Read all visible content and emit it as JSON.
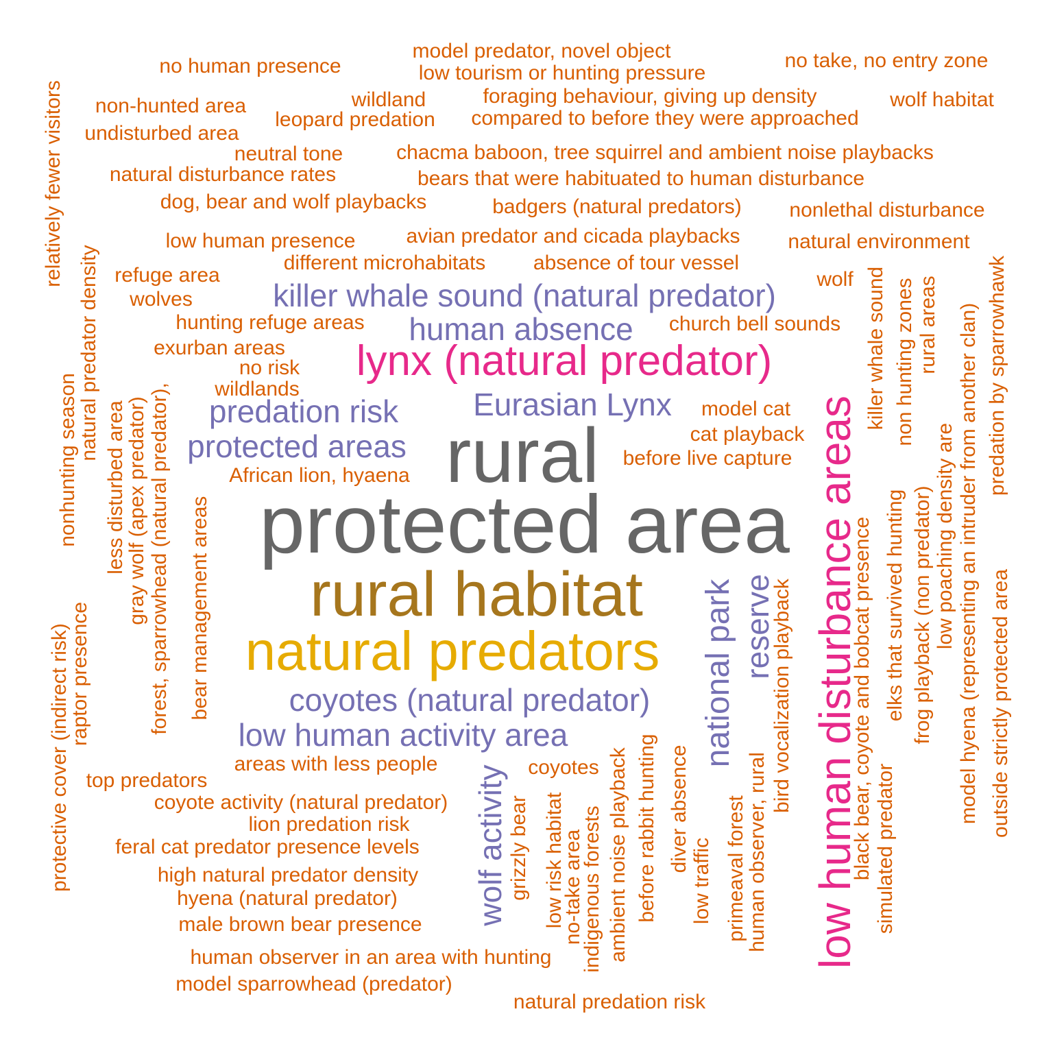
{
  "colors": {
    "orange": "#D95F02",
    "purple": "#7570B3",
    "magenta": "#E7298A",
    "gray": "#666666",
    "olive": "#A6761D",
    "gold": "#E6AB02"
  },
  "words": [
    {
      "text": "protected area",
      "color": "gray"
    },
    {
      "text": "rural",
      "color": "gray"
    },
    {
      "text": "rural habitat",
      "color": "olive"
    },
    {
      "text": "natural predators",
      "color": "gold"
    },
    {
      "text": "lynx (natural predator)",
      "color": "magenta"
    },
    {
      "text": "low human disturbance areas",
      "color": "magenta"
    },
    {
      "text": "killer whale sound (natural predator)",
      "color": "purple"
    },
    {
      "text": "human absence",
      "color": "purple"
    },
    {
      "text": "Eurasian Lynx",
      "color": "purple"
    },
    {
      "text": "predation risk",
      "color": "purple"
    },
    {
      "text": "protected areas",
      "color": "purple"
    },
    {
      "text": "coyotes (natural predator)",
      "color": "purple"
    },
    {
      "text": "low human activity area",
      "color": "purple"
    },
    {
      "text": "national park",
      "color": "purple"
    },
    {
      "text": "reserve",
      "color": "purple"
    },
    {
      "text": "wolf activity",
      "color": "purple"
    },
    {
      "text": "model predator, novel object",
      "color": "orange"
    },
    {
      "text": "low tourism or hunting pressure",
      "color": "orange"
    },
    {
      "text": "no human presence",
      "color": "orange"
    },
    {
      "text": "no take, no entry zone",
      "color": "orange"
    },
    {
      "text": "foraging behaviour, giving up density",
      "color": "orange"
    },
    {
      "text": "wildland",
      "color": "orange"
    },
    {
      "text": "wolf habitat",
      "color": "orange"
    },
    {
      "text": "non-hunted area",
      "color": "orange"
    },
    {
      "text": "leopard predation",
      "color": "orange"
    },
    {
      "text": "compared to before they were approached",
      "color": "orange"
    },
    {
      "text": "undisturbed area",
      "color": "orange"
    },
    {
      "text": "neutral tone",
      "color": "orange"
    },
    {
      "text": "chacma baboon, tree squirrel and ambient noise playbacks",
      "color": "orange"
    },
    {
      "text": "natural disturbance rates",
      "color": "orange"
    },
    {
      "text": "bears that were habituated to human disturbance",
      "color": "orange"
    },
    {
      "text": "dog, bear and wolf playbacks",
      "color": "orange"
    },
    {
      "text": "badgers (natural predators)",
      "color": "orange"
    },
    {
      "text": "nonlethal disturbance",
      "color": "orange"
    },
    {
      "text": "low human presence",
      "color": "orange"
    },
    {
      "text": "avian predator and cicada playbacks",
      "color": "orange"
    },
    {
      "text": "natural environment",
      "color": "orange"
    },
    {
      "text": "different microhabitats",
      "color": "orange"
    },
    {
      "text": "absence of tour vessel",
      "color": "orange"
    },
    {
      "text": "refuge area",
      "color": "orange"
    },
    {
      "text": "wolf",
      "color": "orange"
    },
    {
      "text": "wolves",
      "color": "orange"
    },
    {
      "text": "hunting refuge areas",
      "color": "orange"
    },
    {
      "text": "church bell sounds",
      "color": "orange"
    },
    {
      "text": "exurban areas",
      "color": "orange"
    },
    {
      "text": "no risk",
      "color": "orange"
    },
    {
      "text": "wildlands",
      "color": "orange"
    },
    {
      "text": "model cat",
      "color": "orange"
    },
    {
      "text": "cat playback",
      "color": "orange"
    },
    {
      "text": "before live capture",
      "color": "orange"
    },
    {
      "text": "African lion, hyaena",
      "color": "orange"
    },
    {
      "text": "areas with less people",
      "color": "orange"
    },
    {
      "text": "coyotes",
      "color": "orange"
    },
    {
      "text": "top predators",
      "color": "orange"
    },
    {
      "text": "coyote activity (natural predator)",
      "color": "orange"
    },
    {
      "text": "lion predation risk",
      "color": "orange"
    },
    {
      "text": "feral cat predator presence levels",
      "color": "orange"
    },
    {
      "text": "high natural predator density",
      "color": "orange"
    },
    {
      "text": "hyena (natural predator)",
      "color": "orange"
    },
    {
      "text": "male brown bear presence",
      "color": "orange"
    },
    {
      "text": "human observer in an area with hunting",
      "color": "orange"
    },
    {
      "text": "model sparrowhead (predator)",
      "color": "orange"
    },
    {
      "text": "natural predation risk",
      "color": "orange"
    },
    {
      "text": "relatively fewer visitors",
      "color": "orange"
    },
    {
      "text": "natural predator density",
      "color": "orange"
    },
    {
      "text": "nonhunting season",
      "color": "orange"
    },
    {
      "text": "less disturbed area",
      "color": "orange"
    },
    {
      "text": "gray wolf (apex predator)",
      "color": "orange"
    },
    {
      "text": "forest, sparrowhead (natural predator),",
      "color": "orange"
    },
    {
      "text": "bear management areas",
      "color": "orange"
    },
    {
      "text": "protective cover (indirect risk)",
      "color": "orange"
    },
    {
      "text": "raptor presence",
      "color": "orange"
    },
    {
      "text": "grizzly bear",
      "color": "orange"
    },
    {
      "text": "low risk habitat",
      "color": "orange"
    },
    {
      "text": "no-take area",
      "color": "orange"
    },
    {
      "text": "indigenous forests",
      "color": "orange"
    },
    {
      "text": "ambient noise playback",
      "color": "orange"
    },
    {
      "text": "before rabbit hunting",
      "color": "orange"
    },
    {
      "text": "diver absence",
      "color": "orange"
    },
    {
      "text": "low traffic",
      "color": "orange"
    },
    {
      "text": "primeaval forest",
      "color": "orange"
    },
    {
      "text": "human observer, rural",
      "color": "orange"
    },
    {
      "text": "bird vocalization playback",
      "color": "orange"
    },
    {
      "text": "black bear, coyote and bobcat presence",
      "color": "orange"
    },
    {
      "text": "simulated predator",
      "color": "orange"
    },
    {
      "text": "killer whale sound",
      "color": "orange"
    },
    {
      "text": "elks that survived hunting",
      "color": "orange"
    },
    {
      "text": "non hunting zones",
      "color": "orange"
    },
    {
      "text": "frog playback (non predator)",
      "color": "orange"
    },
    {
      "text": "rural areas",
      "color": "orange"
    },
    {
      "text": "low poaching density are",
      "color": "orange"
    },
    {
      "text": "model hyena (representing an intruder from another clan)",
      "color": "orange"
    },
    {
      "text": "outside strictly protected area",
      "color": "orange"
    },
    {
      "text": "predation by sparrowhawk",
      "color": "orange"
    }
  ]
}
